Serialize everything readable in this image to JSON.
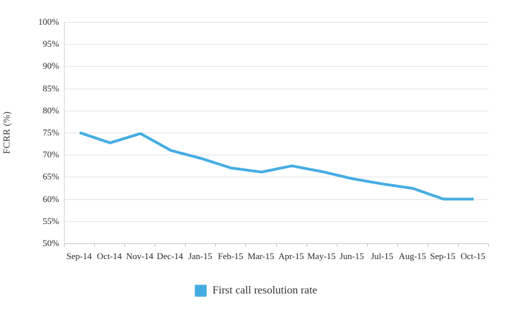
{
  "chart_data": {
    "type": "line",
    "title": "",
    "xlabel": "",
    "ylabel": "FCRR (%)",
    "categories": [
      "Sep-14",
      "Oct-14",
      "Nov-14",
      "Dec-14",
      "Jan-15",
      "Feb-15",
      "Mar-15",
      "Apr-15",
      "May-15",
      "Jun-15",
      "Jul-15",
      "Aug-15",
      "Sep-15",
      "Oct-15"
    ],
    "series": [
      {
        "name": "First call resolution rate",
        "values": [
          75,
          72.7,
          74.8,
          71,
          69.2,
          67,
          66.1,
          67.5,
          66.2,
          64.6,
          63.4,
          62.4,
          60,
          60
        ]
      }
    ],
    "ylim": [
      50,
      100
    ],
    "ytick_step": 5,
    "ytick_labels": [
      "100%",
      "95%",
      "90%",
      "85%",
      "80%",
      "75%",
      "70%",
      "65%",
      "60%",
      "55%",
      "50%"
    ],
    "grid": "horizontal",
    "legend_position": "bottom",
    "colors": {
      "line": "#45ACE3",
      "legend_swatch": "#45ACE3",
      "gridline": "#e1e2e9",
      "axis": "#c9cad1",
      "tick": "#c2c3ca",
      "text": "#2b2b2b"
    }
  },
  "legend": {
    "label": "First call resolution rate"
  },
  "y_axis": {
    "title": "FCRR (%)"
  }
}
